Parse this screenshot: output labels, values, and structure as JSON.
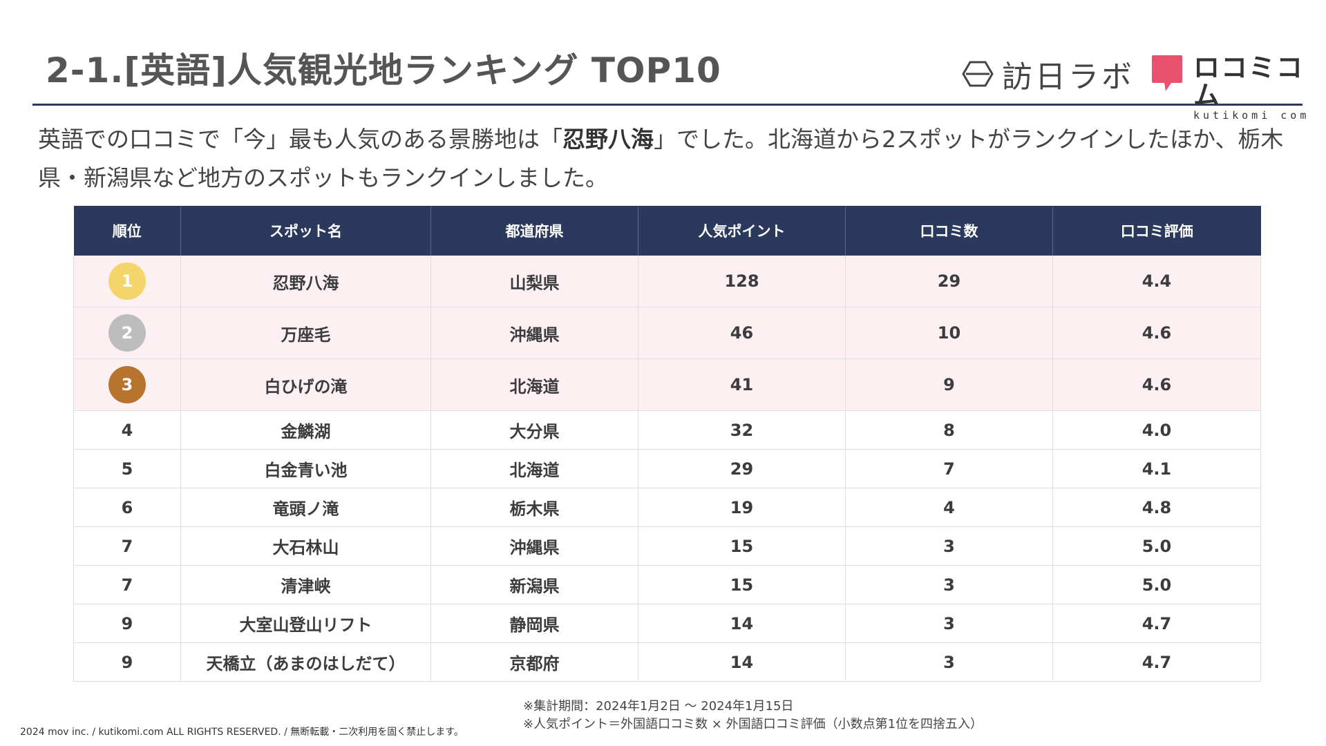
{
  "header": {
    "title": "2-1.[英語]人気観光地ランキング TOP10",
    "logo_honichi": "訪日ラボ",
    "logo_kutikomi_main": "ロコミコム",
    "logo_kutikomi_sub": "kutikomi com"
  },
  "lead": {
    "part1": "英語での口コミで「今」最も人気のある景勝地は「",
    "highlight": "忍野八海",
    "part2": "」でした。北海道から2スポットがランクインしたほか、栃木県・新潟県など地方のスポットもランクインしました。"
  },
  "table": {
    "headers": [
      "順位",
      "スポット名",
      "都道府県",
      "人気ポイント",
      "口コミ数",
      "口コミ評価"
    ],
    "rows": [
      {
        "rank": "1",
        "name": "忍野八海",
        "pref": "山梨県",
        "points": "128",
        "reviews": "29",
        "rating": "4.4"
      },
      {
        "rank": "2",
        "name": "万座毛",
        "pref": "沖縄県",
        "points": "46",
        "reviews": "10",
        "rating": "4.6"
      },
      {
        "rank": "3",
        "name": "白ひげの滝",
        "pref": "北海道",
        "points": "41",
        "reviews": "9",
        "rating": "4.6"
      },
      {
        "rank": "4",
        "name": "金鱗湖",
        "pref": "大分県",
        "points": "32",
        "reviews": "8",
        "rating": "4.0"
      },
      {
        "rank": "5",
        "name": "白金青い池",
        "pref": "北海道",
        "points": "29",
        "reviews": "7",
        "rating": "4.1"
      },
      {
        "rank": "6",
        "name": "竜頭ノ滝",
        "pref": "栃木県",
        "points": "19",
        "reviews": "4",
        "rating": "4.8"
      },
      {
        "rank": "7",
        "name": "大石林山",
        "pref": "沖縄県",
        "points": "15",
        "reviews": "3",
        "rating": "5.0"
      },
      {
        "rank": "7",
        "name": "清津峡",
        "pref": "新潟県",
        "points": "15",
        "reviews": "3",
        "rating": "5.0"
      },
      {
        "rank": "9",
        "name": "大室山登山リフト",
        "pref": "静岡県",
        "points": "14",
        "reviews": "3",
        "rating": "4.7"
      },
      {
        "rank": "9",
        "name": "天橋立（あまのはしだて）",
        "pref": "京都府",
        "points": "14",
        "reviews": "3",
        "rating": "4.7"
      }
    ]
  },
  "colors": {
    "navy": "#2b3a5c",
    "gold": "#f5d46a",
    "silver": "#bdbdbd",
    "bronze": "#b8732e",
    "pink": "#fdf0f3",
    "brand_pink": "#e8506e"
  },
  "notes": {
    "line1": "※集計期間：2024年1月2日 〜 2024年1月15日",
    "line2": "※人気ポイント＝外国語口コミ数 × 外国語口コミ評価（小数点第1位を四捨五入）"
  },
  "footer": {
    "copyright": "2024 mov inc. / kutikomi.com ALL RIGHTS RESERVED. / 無断転載・二次利用を固く禁止します。"
  }
}
